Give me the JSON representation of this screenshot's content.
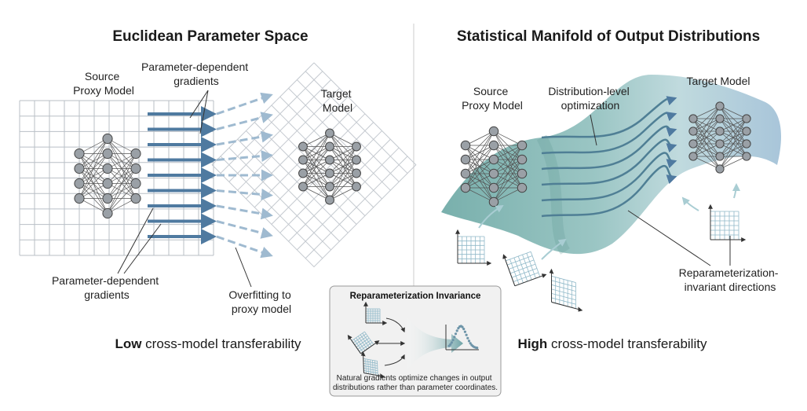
{
  "left": {
    "title": "Euclidean Parameter Space",
    "source_label": [
      "Source",
      "Proxy Model"
    ],
    "target_label": [
      "Target",
      "Model"
    ],
    "gradients_top": [
      "Parameter-dependent",
      "gradients"
    ],
    "gradients_bottom": [
      "Parameter-dependent",
      "gradients"
    ],
    "overfitting": [
      "Overfitting to",
      "proxy model"
    ],
    "footer_bold": "Low",
    "footer_rest": " cross-model transferability"
  },
  "right": {
    "title": "Statistical Manifold of Output Distributions",
    "source_label": [
      "Source",
      "Proxy Model"
    ],
    "target_label": "Target Model",
    "optimization": [
      "Distribution-level",
      "optimization"
    ],
    "invariant": [
      "Reparameterization-",
      "invariant directions"
    ],
    "footer_bold": "High",
    "footer_rest": " cross-model transferability"
  },
  "box": {
    "title": "Reparameterization Invariance",
    "caption": [
      "Natural gradients optimize changes in output",
      "distributions rather than parameter coordinates."
    ]
  },
  "colors": {
    "arrow_blue": "#4f7aa0",
    "manifold_teal": "#7fb3b3",
    "node_gray": "#9aa0a6",
    "grid_line": "#b9bfc6"
  }
}
